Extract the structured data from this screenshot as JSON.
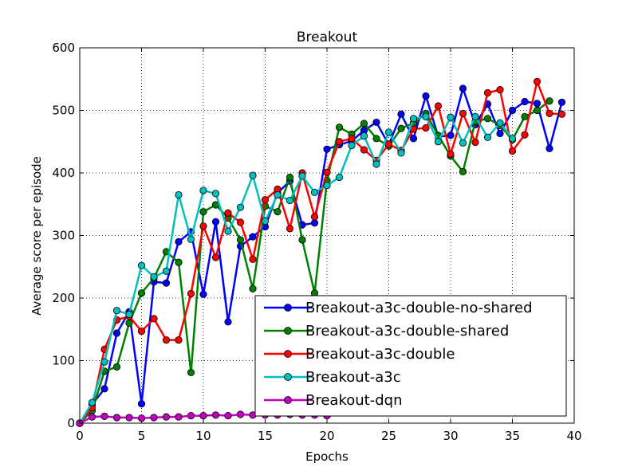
{
  "chart_data": {
    "type": "line",
    "title": "Breakout",
    "xlabel": "Epochs",
    "ylabel": "Average score per episode",
    "xlim": [
      0,
      40
    ],
    "ylim": [
      0,
      600
    ],
    "xticks": [
      0,
      5,
      10,
      15,
      20,
      25,
      30,
      35,
      40
    ],
    "yticks": [
      0,
      100,
      200,
      300,
      400,
      500,
      600
    ],
    "grid": true,
    "legend_position": "lower-right",
    "series": [
      {
        "name": "Breakout-a3c-double-no-shared",
        "color": "#0000ff",
        "x": [
          0,
          1,
          2,
          3,
          4,
          5,
          6,
          7,
          8,
          9,
          10,
          11,
          12,
          13,
          14,
          15,
          16,
          17,
          18,
          19,
          20,
          21,
          22,
          23,
          24,
          25,
          26,
          27,
          28,
          29,
          30,
          31,
          32,
          33,
          34,
          35,
          36,
          37,
          38,
          39
        ],
        "y": [
          0,
          30,
          55,
          144,
          178,
          31,
          226,
          224,
          290,
          306,
          206,
          322,
          162,
          283,
          298,
          314,
          368,
          387,
          317,
          320,
          438,
          445,
          451,
          468,
          481,
          445,
          494,
          455,
          523,
          458,
          460,
          535,
          477,
          510,
          463,
          500,
          514,
          511,
          439,
          513
        ]
      },
      {
        "name": "Breakout-a3c-double-shared",
        "color": "#008000",
        "x": [
          0,
          1,
          2,
          3,
          4,
          5,
          6,
          7,
          8,
          9,
          10,
          11,
          12,
          13,
          14,
          15,
          16,
          17,
          18,
          19,
          20,
          21,
          22,
          23,
          24,
          25,
          26,
          27,
          28,
          29,
          30,
          31,
          32,
          33,
          34,
          35,
          36,
          37,
          38
        ],
        "y": [
          0,
          20,
          83,
          90,
          160,
          208,
          232,
          274,
          257,
          81,
          338,
          349,
          328,
          293,
          215,
          347,
          338,
          393,
          293,
          208,
          388,
          473,
          462,
          479,
          455,
          443,
          471,
          480,
          495,
          460,
          427,
          402,
          482,
          487,
          476,
          453,
          490,
          500,
          515
        ]
      },
      {
        "name": "Breakout-a3c-double",
        "color": "#ff0000",
        "x": [
          0,
          1,
          2,
          3,
          4,
          5,
          6,
          7,
          8,
          9,
          10,
          11,
          12,
          13,
          14,
          15,
          16,
          17,
          18,
          19,
          20,
          21,
          22,
          23,
          24,
          25,
          26,
          27,
          28,
          29,
          30,
          31,
          32,
          33,
          34,
          35,
          36,
          37,
          38,
          39
        ],
        "y": [
          0,
          25,
          118,
          165,
          171,
          147,
          167,
          133,
          133,
          207,
          315,
          265,
          336,
          321,
          262,
          357,
          374,
          311,
          400,
          330,
          401,
          450,
          455,
          437,
          420,
          446,
          436,
          470,
          472,
          507,
          430,
          495,
          449,
          528,
          533,
          435,
          461,
          546,
          495,
          494
        ]
      },
      {
        "name": "Breakout-a3c",
        "color": "#00bfbf",
        "x": [
          0,
          1,
          2,
          3,
          4,
          5,
          6,
          7,
          8,
          9,
          10,
          11,
          12,
          13,
          14,
          15,
          16,
          17,
          18,
          19,
          20,
          21,
          22,
          23,
          24,
          25,
          26,
          27,
          28,
          29,
          30,
          31,
          32,
          33,
          34,
          35
        ],
        "y": [
          0,
          33,
          98,
          180,
          174,
          252,
          234,
          243,
          365,
          294,
          372,
          367,
          307,
          345,
          396,
          323,
          365,
          356,
          395,
          369,
          380,
          393,
          444,
          459,
          414,
          465,
          432,
          487,
          490,
          450,
          489,
          448,
          490,
          457,
          480,
          455
        ]
      },
      {
        "name": "Breakout-dqn",
        "color": "#bf00bf",
        "x": [
          0,
          1,
          2,
          3,
          4,
          5,
          6,
          7,
          8,
          9,
          10,
          11,
          12,
          13,
          14,
          15,
          16,
          17,
          18,
          19,
          20
        ],
        "y": [
          0,
          10,
          11,
          9,
          9,
          8,
          9,
          10,
          10,
          12,
          12,
          13,
          12,
          14,
          13,
          13,
          13,
          14,
          13,
          13,
          12
        ]
      }
    ]
  }
}
